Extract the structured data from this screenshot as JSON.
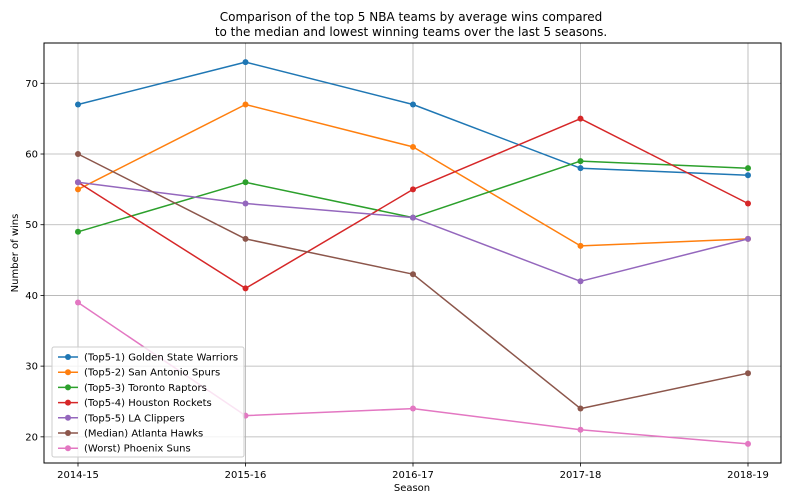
{
  "chart_data": {
    "type": "line",
    "title_lines": [
      "Comparison of the top 5 NBA teams by average wins compared",
      "to the median and lowest winning teams over the last 5 seasons."
    ],
    "xlabel": "Season",
    "ylabel": "Number of wins",
    "categories": [
      "2014-15",
      "2015-16",
      "2016-17",
      "2017-18",
      "2018-19"
    ],
    "ylim": [
      16.3,
      75.7
    ],
    "yticks": [
      20,
      30,
      40,
      50,
      60,
      70
    ],
    "grid": true,
    "legend_position": "lower-left",
    "series": [
      {
        "name": "(Top5-1) Golden State Warriors",
        "color": "#1f77b4",
        "values": [
          67,
          73,
          67,
          58,
          57
        ]
      },
      {
        "name": "(Top5-2) San Antonio Spurs",
        "color": "#ff7f0e",
        "values": [
          55,
          67,
          61,
          47,
          48
        ]
      },
      {
        "name": "(Top5-3) Toronto Raptors",
        "color": "#2ca02c",
        "values": [
          49,
          56,
          51,
          59,
          58
        ]
      },
      {
        "name": "(Top5-4) Houston Rockets",
        "color": "#d62728",
        "values": [
          56,
          41,
          55,
          65,
          53
        ]
      },
      {
        "name": "(Top5-5) LA Clippers",
        "color": "#9467bd",
        "values": [
          56,
          53,
          51,
          42,
          48
        ]
      },
      {
        "name": "(Median) Atlanta Hawks",
        "color": "#8c564b",
        "values": [
          60,
          48,
          43,
          24,
          29
        ]
      },
      {
        "name": "(Worst) Phoenix Suns",
        "color": "#e377c2",
        "values": [
          39,
          23,
          24,
          21,
          19
        ]
      }
    ]
  }
}
